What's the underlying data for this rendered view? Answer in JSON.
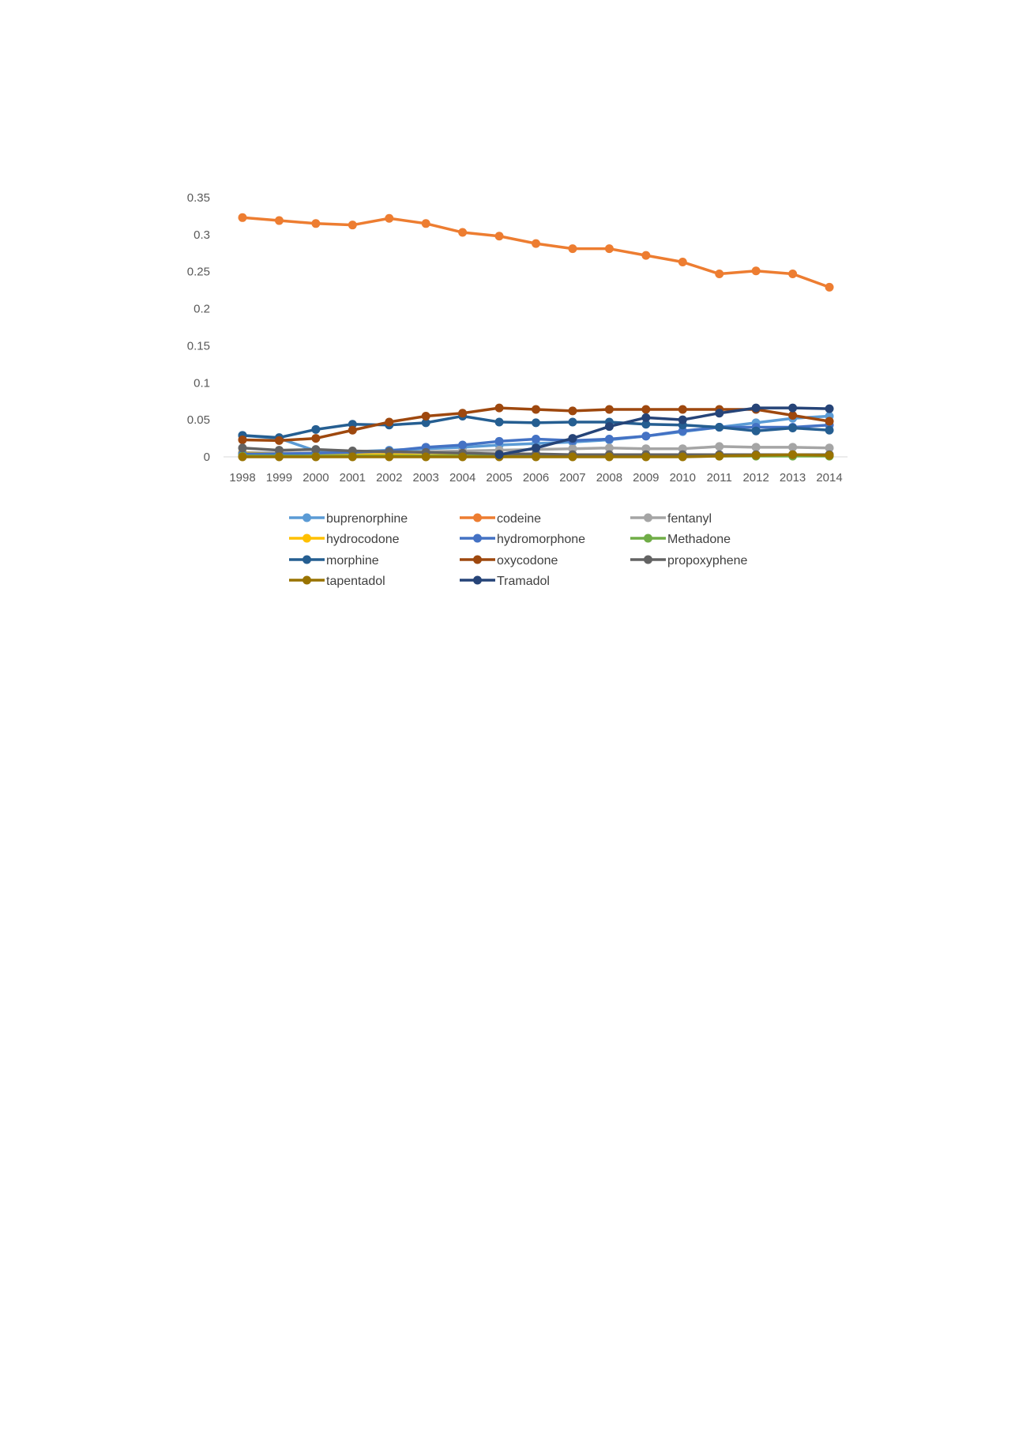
{
  "chart_data": {
    "type": "line",
    "title": "",
    "xlabel": "",
    "ylabel": "",
    "ylim": [
      0,
      0.35
    ],
    "yticks": [
      "0",
      "0.05",
      "0.1",
      "0.15",
      "0.2",
      "0.25",
      "0.3",
      "0.35"
    ],
    "ytick_values": [
      0,
      0.05,
      0.1,
      0.15,
      0.2,
      0.25,
      0.3,
      0.35
    ],
    "categories": [
      "1998",
      "1999",
      "2000",
      "2001",
      "2002",
      "2003",
      "2004",
      "2005",
      "2006",
      "2007",
      "2008",
      "2009",
      "2010",
      "2011",
      "2012",
      "2013",
      "2014"
    ],
    "grid": false,
    "legend_position": "bottom",
    "series": [
      {
        "name": "buprenorphine",
        "color": "#5B9BD5",
        "values": [
          0.029,
          0.025,
          0.008,
          0.007,
          0.009,
          0.011,
          0.013,
          0.016,
          0.018,
          0.02,
          0.023,
          0.028,
          0.034,
          0.04,
          0.046,
          0.052,
          0.055
        ]
      },
      {
        "name": "codeine",
        "color": "#ED7D31",
        "values": [
          0.323,
          0.319,
          0.315,
          0.313,
          0.322,
          0.315,
          0.303,
          0.298,
          0.288,
          0.281,
          0.281,
          0.272,
          0.263,
          0.247,
          0.251,
          0.247,
          0.229
        ]
      },
      {
        "name": "fentanyl",
        "color": "#A5A5A5",
        "values": [
          0.006,
          0.005,
          0.005,
          0.006,
          0.006,
          0.007,
          0.008,
          0.009,
          0.01,
          0.011,
          0.012,
          0.011,
          0.011,
          0.014,
          0.013,
          0.013,
          0.012
        ]
      },
      {
        "name": "hydrocodone",
        "color": "#FFC000",
        "values": [
          0.005,
          0.004,
          0.003,
          0.003,
          0.003,
          0.002,
          0.002,
          0.002,
          0.002,
          0.002,
          0.002,
          0.002,
          0.002,
          0.002,
          0.002,
          0.002,
          0.002
        ]
      },
      {
        "name": "hydromorphone",
        "color": "#4472C4",
        "values": [
          0.004,
          0.004,
          0.005,
          0.006,
          0.008,
          0.013,
          0.016,
          0.021,
          0.024,
          0.022,
          0.024,
          0.028,
          0.035,
          0.04,
          0.04,
          0.04,
          0.043
        ]
      },
      {
        "name": "Methadone",
        "color": "#70AD47",
        "values": [
          0.001,
          0.001,
          0.001,
          0.001,
          0.001,
          0.001,
          0.001,
          0.001,
          0.001,
          0.001,
          0.001,
          0.001,
          0.001,
          0.001,
          0.001,
          0.001,
          0.001
        ]
      },
      {
        "name": "morphine",
        "color": "#255E91",
        "values": [
          0.029,
          0.026,
          0.037,
          0.044,
          0.043,
          0.046,
          0.055,
          0.047,
          0.046,
          0.047,
          0.047,
          0.044,
          0.043,
          0.04,
          0.035,
          0.039,
          0.036
        ]
      },
      {
        "name": "oxycodone",
        "color": "#9E480E",
        "values": [
          0.023,
          0.022,
          0.025,
          0.036,
          0.047,
          0.055,
          0.059,
          0.066,
          0.064,
          0.062,
          0.064,
          0.064,
          0.064,
          0.064,
          0.064,
          0.056,
          0.048
        ]
      },
      {
        "name": "propoxyphene",
        "color": "#636363",
        "values": [
          0.012,
          0.009,
          0.01,
          0.008,
          0.007,
          0.006,
          0.005,
          0.004,
          0.004,
          0.003,
          0.003,
          0.003,
          0.003,
          0.003,
          0.003,
          0.003,
          0.003
        ]
      },
      {
        "name": "tapentadol",
        "color": "#997300",
        "values": [
          0.0,
          0.0,
          0.0,
          0.0,
          0.0,
          0.0,
          0.0,
          0.0,
          0.0,
          0.0,
          0.0,
          0.0,
          0.0,
          0.001,
          0.002,
          0.003,
          0.002
        ]
      },
      {
        "name": "Tramadol",
        "color": "#264478",
        "values": [
          null,
          null,
          null,
          null,
          null,
          null,
          null,
          0.003,
          0.012,
          0.025,
          0.041,
          0.053,
          0.05,
          0.059,
          0.066,
          0.066,
          0.065
        ]
      }
    ]
  }
}
